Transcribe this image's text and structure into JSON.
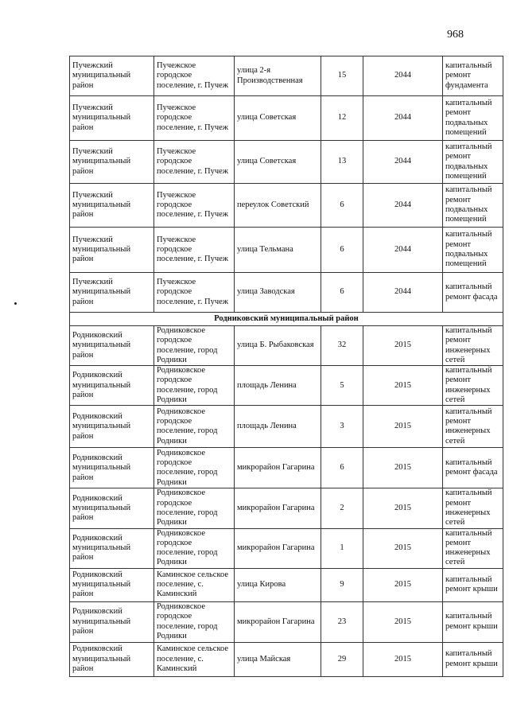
{
  "page_number": "968",
  "sections": [
    {
      "title": "",
      "rows": [
        {
          "district": "Пучежский муниципальный район",
          "settlement": "Пучежское городское поселение, г. Пучеж",
          "street": "улица 2-я Производственная",
          "house": "15",
          "year": "2044",
          "work": "капитальный ремонт фундамента"
        },
        {
          "district": "Пучежский муниципальный район",
          "settlement": "Пучежское городское поселение, г. Пучеж",
          "street": "улица Советская",
          "house": "12",
          "year": "2044",
          "work": "капитальный ремонт подвальных помещений"
        },
        {
          "district": "Пучежский муниципальный район",
          "settlement": "Пучежское городское поселение, г. Пучеж",
          "street": "улица Советская",
          "house": "13",
          "year": "2044",
          "work": "капитальный ремонт подвальных помещений"
        },
        {
          "district": "Пучежский муниципальный район",
          "settlement": "Пучежское городское поселение, г. Пучеж",
          "street": "переулок Советский",
          "house": "6",
          "year": "2044",
          "work": "капитальный ремонт подвальных помещений"
        },
        {
          "district": "Пучежский муниципальный район",
          "settlement": "Пучежское городское поселение, г. Пучеж",
          "street": "улица Тельмана",
          "house": "6",
          "year": "2044",
          "work": "капитальный ремонт подвальных помещений"
        },
        {
          "district": "Пучежский муниципальный район",
          "settlement": "Пучежское городское поселение, г. Пучеж",
          "street": "улица Заводская",
          "house": "6",
          "year": "2044",
          "work": "капитальный ремонт фасада"
        }
      ]
    },
    {
      "title": "Родниковский муниципальный район",
      "rows": [
        {
          "district": "Родниковский муниципальный район",
          "settlement": "Родниковское городское поселение, город Родники",
          "street": "улица Б. Рыбаковская",
          "house": "32",
          "year": "2015",
          "work": "капитальный ремонт инженерных сетей"
        },
        {
          "district": "Родниковский муниципальный район",
          "settlement": "Родниковское городское поселение, город Родники",
          "street": "площадь Ленина",
          "house": "5",
          "year": "2015",
          "work": "капитальный ремонт инженерных сетей"
        },
        {
          "district": "Родниковский муниципальный район",
          "settlement": "Родниковское городское поселение, город Родники",
          "street": "площадь Ленина",
          "house": "3",
          "year": "2015",
          "work": "капитальный ремонт инженерных сетей"
        },
        {
          "district": "Родниковский муниципальный район",
          "settlement": "Родниковское городское поселение, город Родники",
          "street": "микрорайон Гагарина",
          "house": "6",
          "year": "2015",
          "work": "капитальный ремонт фасада"
        },
        {
          "district": "Родниковский муниципальный район",
          "settlement": "Родниковское городское поселение, город Родники",
          "street": "микрорайон Гагарина",
          "house": "2",
          "year": "2015",
          "work": "капитальный ремонт инженерных сетей"
        },
        {
          "district": "Родниковский муниципальный район",
          "settlement": "Родниковское городское поселение, город Родники",
          "street": "микрорайон Гагарина",
          "house": "1",
          "year": "2015",
          "work": "капитальный ремонт инженерных сетей"
        },
        {
          "district": "Родниковский муниципальный район",
          "settlement": "Каминское сельское поселение, с. Каминский",
          "street": "улица Кирова",
          "house": "9",
          "year": "2015",
          "work": "капитальный ремонт крыши"
        },
        {
          "district": "Родниковский муниципальный район",
          "settlement": "Родниковское городское поселение, город Родники",
          "street": "микрорайон Гагарина",
          "house": "23",
          "year": "2015",
          "work": "капитальный ремонт крыши"
        },
        {
          "district": "Родниковский муниципальный район",
          "settlement": "Каминское сельское поселение, с. Каминский",
          "street": "улица Майская",
          "house": "29",
          "year": "2015",
          "work": "капитальный ремонт крыши"
        }
      ]
    }
  ]
}
